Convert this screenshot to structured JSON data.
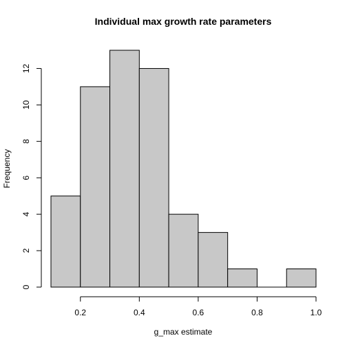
{
  "chart_data": {
    "type": "bar",
    "title": "Individual max growth rate parameters",
    "xlabel": "g_max estimate",
    "ylabel": "Frequency",
    "bins": [
      {
        "start": 0.1,
        "end": 0.2,
        "count": 5
      },
      {
        "start": 0.2,
        "end": 0.3,
        "count": 11
      },
      {
        "start": 0.3,
        "end": 0.4,
        "count": 13
      },
      {
        "start": 0.4,
        "end": 0.5,
        "count": 12
      },
      {
        "start": 0.5,
        "end": 0.6,
        "count": 4
      },
      {
        "start": 0.6,
        "end": 0.7,
        "count": 3
      },
      {
        "start": 0.7,
        "end": 0.8,
        "count": 1
      },
      {
        "start": 0.8,
        "end": 0.9,
        "count": 0
      },
      {
        "start": 0.9,
        "end": 1.0,
        "count": 1
      }
    ],
    "xlim": [
      0.1,
      1.0
    ],
    "ylim": [
      0,
      13
    ],
    "x_ticks": [
      0.2,
      0.4,
      0.6,
      0.8,
      1.0
    ],
    "x_tick_labels": [
      "0.2",
      "0.4",
      "0.6",
      "0.8",
      "1.0"
    ],
    "y_ticks": [
      0,
      2,
      4,
      6,
      8,
      10,
      12
    ],
    "y_tick_labels": [
      "0",
      "2",
      "4",
      "6",
      "8",
      "10",
      "12"
    ],
    "grid": false,
    "bar_color": "#c8c8c8",
    "edge_color": "#000000"
  }
}
